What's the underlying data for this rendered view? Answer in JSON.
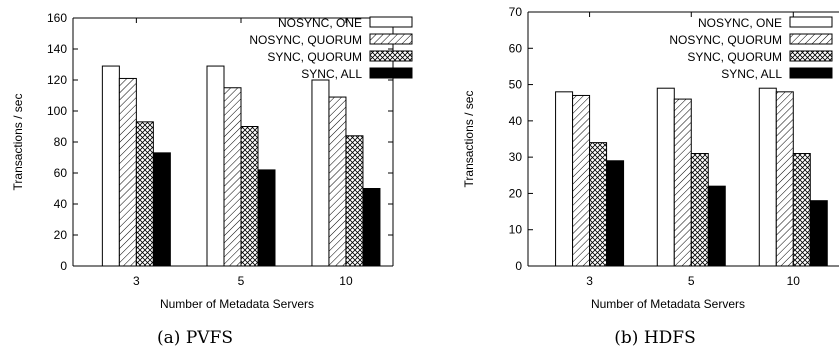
{
  "colors": {
    "ink": "#000000",
    "paper": "#ffffff"
  },
  "chart_data": [
    {
      "type": "bar",
      "caption": "(a) PVFS",
      "xlabel": "Number of Metadata Servers",
      "ylabel": "Transactions / sec",
      "ylim": [
        0,
        160
      ],
      "yticks": [
        0,
        20,
        40,
        60,
        80,
        100,
        120,
        140,
        160
      ],
      "categories": [
        "3",
        "5",
        "10"
      ],
      "legend_position": "top-right",
      "series": [
        {
          "name": "NOSYNC, ONE",
          "pattern": "solid-white",
          "values": [
            129,
            129,
            120
          ]
        },
        {
          "name": "NOSYNC, QUORUM",
          "pattern": "diagonal-hatch",
          "values": [
            121,
            115,
            109
          ]
        },
        {
          "name": "SYNC, QUORUM",
          "pattern": "cross-hatch",
          "values": [
            93,
            90,
            84
          ]
        },
        {
          "name": "SYNC, ALL",
          "pattern": "solid-black",
          "values": [
            73,
            62,
            50
          ]
        }
      ]
    },
    {
      "type": "bar",
      "caption": "(b) HDFS",
      "xlabel": "Number of Metadata Servers",
      "ylabel": "Transactions / sec",
      "ylim": [
        0,
        70
      ],
      "yticks": [
        0,
        10,
        20,
        30,
        40,
        50,
        60,
        70
      ],
      "categories": [
        "3",
        "5",
        "10"
      ],
      "legend_position": "top-right",
      "series": [
        {
          "name": "NOSYNC, ONE",
          "pattern": "solid-white",
          "values": [
            48,
            49,
            49
          ]
        },
        {
          "name": "NOSYNC, QUORUM",
          "pattern": "diagonal-hatch",
          "values": [
            47,
            46,
            48
          ]
        },
        {
          "name": "SYNC, QUORUM",
          "pattern": "cross-hatch",
          "values": [
            34,
            31,
            31
          ]
        },
        {
          "name": "SYNC, ALL",
          "pattern": "solid-black",
          "values": [
            29,
            22,
            18
          ]
        }
      ]
    }
  ]
}
